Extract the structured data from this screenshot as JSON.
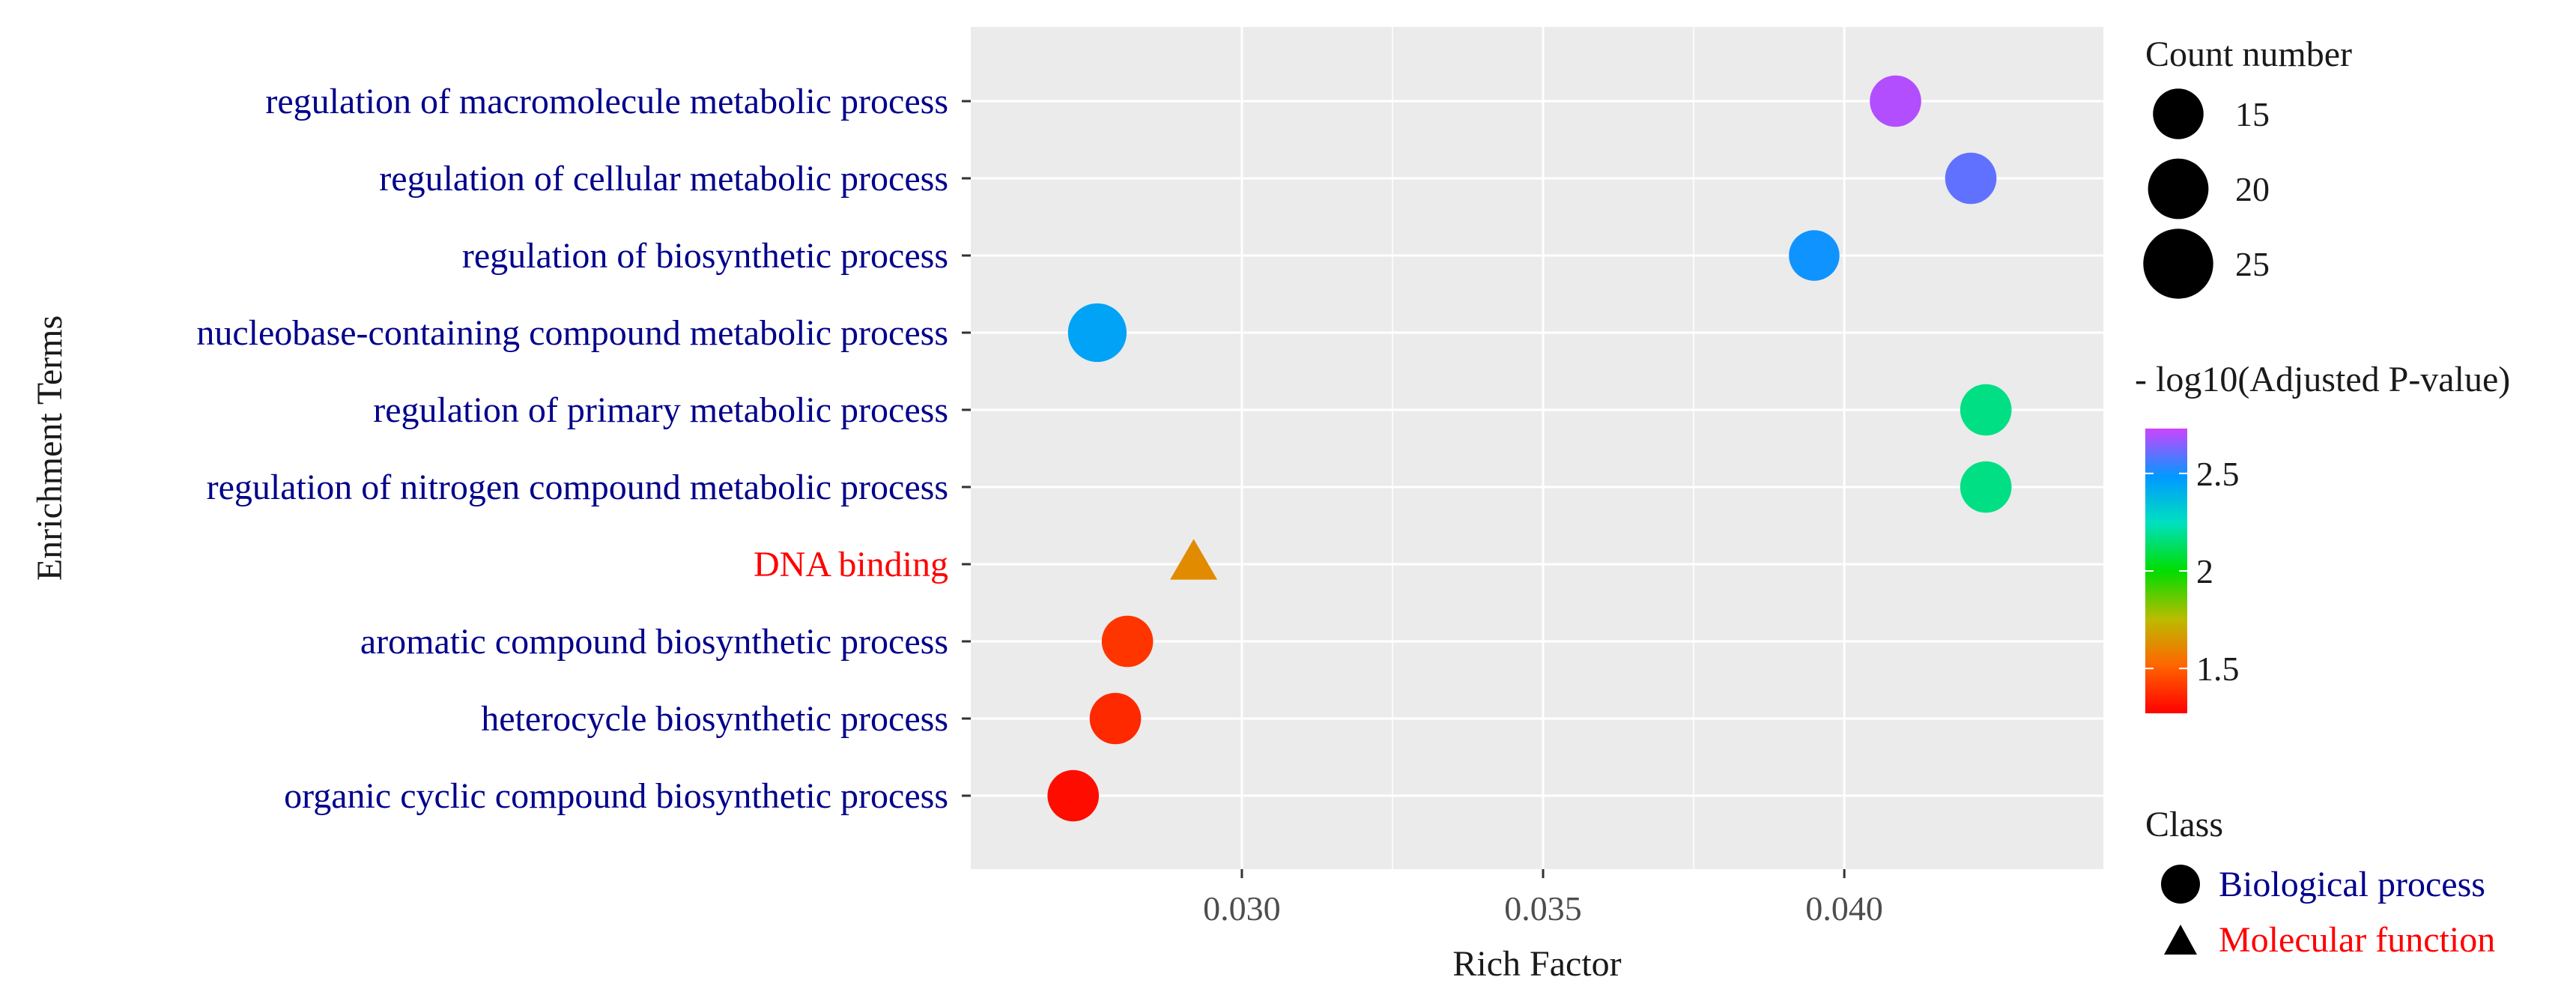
{
  "chart_data": {
    "type": "scatter",
    "xlabel": "Rich Factor",
    "ylabel": "Enrichment Terms",
    "xlim": [
      0.0255,
      0.0443
    ],
    "x_ticks": [
      0.03,
      0.035,
      0.04
    ],
    "x_tick_labels": [
      "0.030",
      "0.035",
      "0.040"
    ],
    "grid": true,
    "points": [
      {
        "term": "regulation of macromolecule metabolic process",
        "class": "Biological process",
        "rich_factor": 0.04085,
        "count": 16,
        "neg_log10_padj": 2.7
      },
      {
        "term": "regulation of cellular metabolic process",
        "class": "Biological process",
        "rich_factor": 0.0421,
        "count": 16,
        "neg_log10_padj": 2.6
      },
      {
        "term": "regulation of biosynthetic process",
        "class": "Biological process",
        "rich_factor": 0.0395,
        "count": 15,
        "neg_log10_padj": 2.5
      },
      {
        "term": "nucleobase-containing compound metabolic process",
        "class": "Biological process",
        "rich_factor": 0.0276,
        "count": 26,
        "neg_log10_padj": 2.45
      },
      {
        "term": "regulation of primary metabolic process",
        "class": "Biological process",
        "rich_factor": 0.04235,
        "count": 16,
        "neg_log10_padj": 2.17
      },
      {
        "term": "regulation of nitrogen compound metabolic process",
        "class": "Biological process",
        "rich_factor": 0.04235,
        "count": 16,
        "neg_log10_padj": 2.17
      },
      {
        "term": "DNA binding",
        "class": "Molecular function",
        "rich_factor": 0.0292,
        "count": 12,
        "neg_log10_padj": 1.62
      },
      {
        "term": "aromatic compound biosynthetic process",
        "class": "Biological process",
        "rich_factor": 0.0281,
        "count": 16,
        "neg_log10_padj": 1.4
      },
      {
        "term": "heterocycle biosynthetic process",
        "class": "Biological process",
        "rich_factor": 0.0279,
        "count": 16,
        "neg_log10_padj": 1.37
      },
      {
        "term": "organic cyclic compound biosynthetic process",
        "class": "Biological process",
        "rich_factor": 0.0272,
        "count": 16,
        "neg_log10_padj": 1.3
      }
    ],
    "size_legend": {
      "title": "Count number",
      "values": [
        15,
        20,
        25
      ],
      "labels": [
        "15",
        "20",
        "25"
      ]
    },
    "color_legend": {
      "title": "- log10(Adjusted P-value)",
      "range": [
        1.27,
        2.73
      ],
      "ticks": [
        1.5,
        2,
        2.5
      ],
      "tick_labels": [
        "1.5",
        "2",
        "2.5"
      ]
    },
    "shape_legend": {
      "title": "Class",
      "items": [
        {
          "label": "Biological process",
          "shape": "circle",
          "text_color": "#00008b"
        },
        {
          "label": "Molecular function",
          "shape": "triangle",
          "text_color": "#ff0000"
        }
      ]
    }
  },
  "colors": {
    "panel_bg": "#ebebeb",
    "grid": "#ffffff",
    "biological_process_text": "#00008b",
    "molecular_function_text": "#ff0000",
    "axis_text": "#333333"
  }
}
